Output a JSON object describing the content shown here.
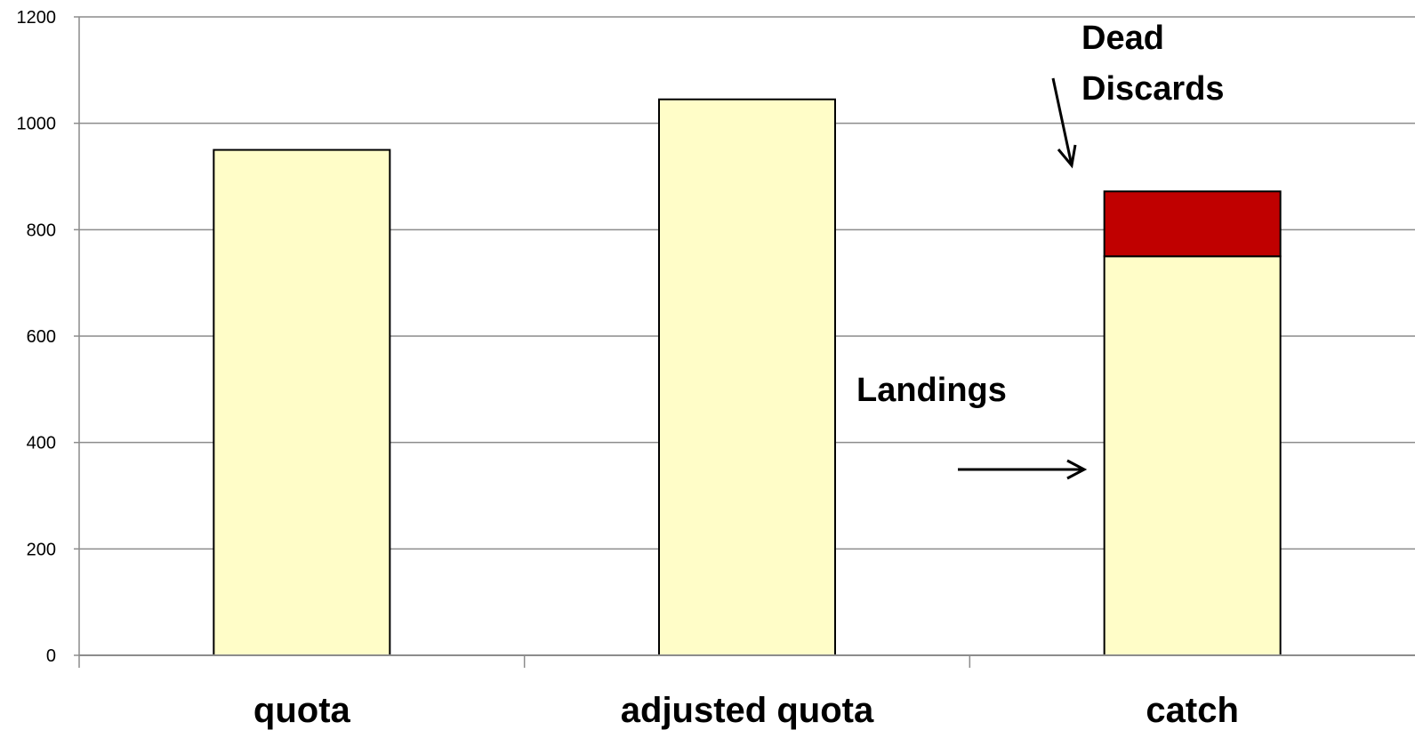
{
  "chart_data": {
    "type": "bar",
    "stacked": true,
    "categories": [
      "quota",
      "adjusted quota",
      "catch"
    ],
    "series": [
      {
        "name": "Landings",
        "values": [
          950,
          1045,
          750
        ],
        "color": "#FFFDC8"
      },
      {
        "name": "Dead Discards",
        "values": [
          0,
          0,
          122
        ],
        "color": "#C00000"
      }
    ],
    "ylim": [
      0,
      1200
    ],
    "yticks": [
      0,
      200,
      400,
      600,
      800,
      1000,
      1200
    ],
    "grid": true,
    "legend": "none",
    "annotations": {
      "dead_discards_line1": "Dead",
      "dead_discards_line2": "Discards",
      "landings": "Landings"
    },
    "colors": {
      "gridline": "#8C8C8C",
      "axis": "#8C8C8C",
      "bar_outline": "#000000"
    }
  }
}
